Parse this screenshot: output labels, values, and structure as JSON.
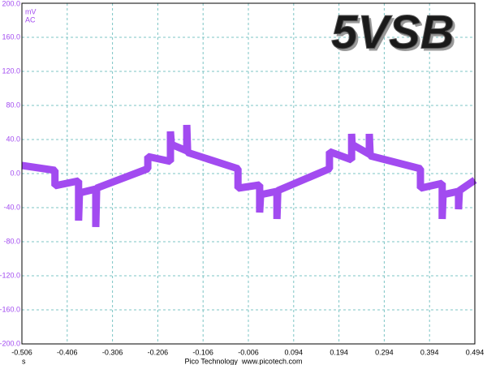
{
  "chart_data": {
    "type": "line",
    "title": "5VSB",
    "y_unit": "mV",
    "coupling": "AC",
    "x_unit": "s",
    "footer": "Pico Technology  www.picotech.com",
    "color": "#a24bf0",
    "grid": true,
    "x": [
      -0.506,
      -0.433,
      -0.433,
      -0.381,
      -0.381,
      -0.381,
      -0.379,
      -0.343,
      -0.343,
      -0.341,
      -0.228,
      -0.228,
      -0.178,
      -0.178,
      -0.176,
      -0.142,
      -0.142,
      -0.14,
      -0.029,
      -0.029,
      0.019,
      0.019,
      0.021,
      0.057,
      0.057,
      0.059,
      0.173,
      0.173,
      0.222,
      0.222,
      0.223,
      0.261,
      0.261,
      0.263,
      0.374,
      0.374,
      0.422,
      0.422,
      0.424,
      0.458,
      0.458,
      0.46,
      0.494
    ],
    "values": [
      9.5,
      3.8,
      -14.3,
      -8.6,
      -22.8,
      -55.2,
      -22.8,
      -18.1,
      -62.8,
      -17.1,
      5.7,
      20.0,
      14.3,
      49.5,
      34.3,
      26.7,
      57.1,
      24.8,
      5.7,
      -17.1,
      -13.3,
      -45.7,
      -24.8,
      -20.9,
      -53.3,
      -20.0,
      5.7,
      25.7,
      16.2,
      46.7,
      34.3,
      22.8,
      46.7,
      20.9,
      5.7,
      -17.1,
      -11.4,
      -53.3,
      -24.8,
      -20.9,
      -41.9,
      -20.0,
      -7.6
    ],
    "xlim": [
      -0.506,
      0.494
    ],
    "xticks": [
      -0.506,
      -0.406,
      -0.306,
      -0.206,
      -0.106,
      -0.006,
      0.094,
      0.194,
      0.294,
      0.394,
      0.494
    ],
    "ylim": [
      -200,
      200
    ],
    "yticks": [
      {
        "value": 200,
        "label": "200.0"
      },
      {
        "value": 160,
        "label": "160.0"
      },
      {
        "value": 120,
        "label": "120.0"
      },
      {
        "value": 80,
        "label": "80.0"
      },
      {
        "value": 40,
        "label": "40.0"
      },
      {
        "value": 0,
        "label": "0.0"
      },
      {
        "value": -40,
        "label": "-40.0"
      },
      {
        "value": -80,
        "label": "-80.0"
      },
      {
        "value": -120,
        "label": "-120.0"
      },
      {
        "value": -160,
        "label": "-160.0"
      },
      {
        "value": -200,
        "label": "-200.0"
      }
    ]
  }
}
